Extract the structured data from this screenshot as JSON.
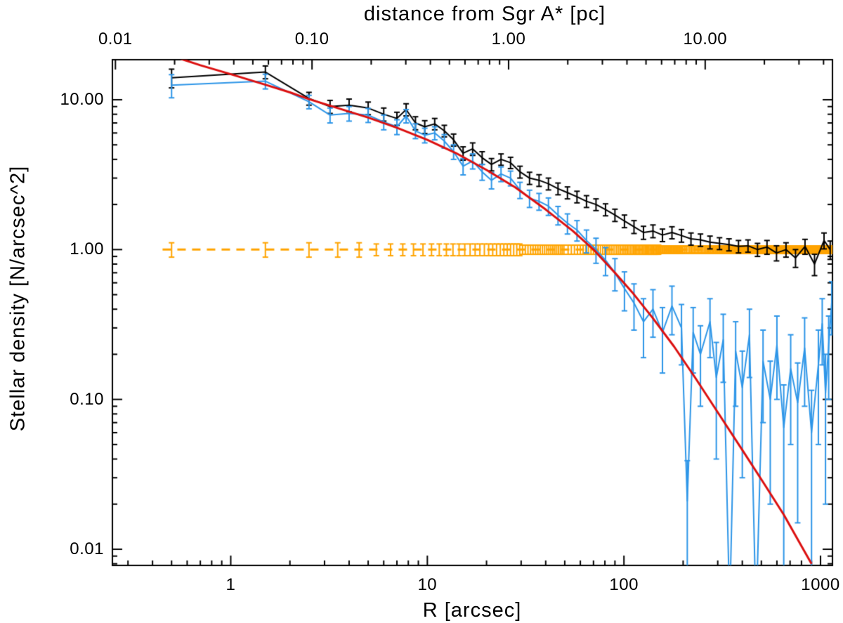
{
  "figure": {
    "title_top": "distance from Sgr A* [pc]",
    "xlabel": "R [arcsec]",
    "ylabel": "Stellar density [N/arcsec^2]"
  },
  "chart_data": {
    "type": "line",
    "x_scale": "log",
    "y_scale": "log",
    "xlim": [
      0.25,
      1150
    ],
    "ylim": [
      0.0078,
      18.5
    ],
    "grid": false,
    "legend": "none",
    "x_ticks": [
      {
        "v": 1,
        "label": "1"
      },
      {
        "v": 10,
        "label": "10"
      },
      {
        "v": 100,
        "label": "100"
      },
      {
        "v": 1000,
        "label": "1000"
      }
    ],
    "y_ticks": [
      {
        "v": 10,
        "label": "10.00"
      },
      {
        "v": 1,
        "label": "1.00"
      },
      {
        "v": 0.1,
        "label": "0.10"
      },
      {
        "v": 0.01,
        "label": "0.01"
      }
    ],
    "top_axis": {
      "label": "distance from Sgr A* [pc]",
      "arcsec_per_pc": 25.9,
      "ticks": [
        {
          "pc": 0.01,
          "label": "0.01"
        },
        {
          "pc": 0.1,
          "label": "0.10"
        },
        {
          "pc": 1,
          "label": "1.00"
        },
        {
          "pc": 10,
          "label": "10.00"
        }
      ]
    },
    "series": [
      {
        "name": "black-observed-density",
        "color": "#000000",
        "type": "errorbar-line",
        "points": [
          [
            0.5,
            14.0,
            2.0
          ],
          [
            1.5,
            15.3,
            1.5
          ],
          [
            2.5,
            10.2,
            1.0
          ],
          [
            3.2,
            9.0,
            0.9
          ],
          [
            4.0,
            9.2,
            0.9
          ],
          [
            5.0,
            8.8,
            0.85
          ],
          [
            6.0,
            8.0,
            0.8
          ],
          [
            7.0,
            7.5,
            0.75
          ],
          [
            7.8,
            8.6,
            0.8
          ],
          [
            8.7,
            7.0,
            0.7
          ],
          [
            9.7,
            6.6,
            0.65
          ],
          [
            10.9,
            6.9,
            0.6
          ],
          [
            12.2,
            6.2,
            0.55
          ],
          [
            13.6,
            5.4,
            0.5
          ],
          [
            15.2,
            4.4,
            0.45
          ],
          [
            17.0,
            4.7,
            0.45
          ],
          [
            19.0,
            4.1,
            0.4
          ],
          [
            21.2,
            3.7,
            0.35
          ],
          [
            23.7,
            4.0,
            0.35
          ],
          [
            26.5,
            3.8,
            0.33
          ],
          [
            29.6,
            3.3,
            0.3
          ],
          [
            33.1,
            3.0,
            0.28
          ],
          [
            37.0,
            2.9,
            0.26
          ],
          [
            41.3,
            2.75,
            0.25
          ],
          [
            46.2,
            2.55,
            0.23
          ],
          [
            51.6,
            2.4,
            0.22
          ],
          [
            57.7,
            2.25,
            0.2
          ],
          [
            64.5,
            2.1,
            0.19
          ],
          [
            72.1,
            2.0,
            0.18
          ],
          [
            80.6,
            1.85,
            0.17
          ],
          [
            90.0,
            1.7,
            0.16
          ],
          [
            100.6,
            1.55,
            0.15
          ],
          [
            112.5,
            1.42,
            0.14
          ],
          [
            125.7,
            1.3,
            0.13
          ],
          [
            140.5,
            1.33,
            0.13
          ],
          [
            157.0,
            1.25,
            0.12
          ],
          [
            175.5,
            1.3,
            0.12
          ],
          [
            196.2,
            1.24,
            0.12
          ],
          [
            219.3,
            1.18,
            0.11
          ],
          [
            245.1,
            1.16,
            0.11
          ],
          [
            274.0,
            1.12,
            0.11
          ],
          [
            306.3,
            1.1,
            0.1
          ],
          [
            342.3,
            1.08,
            0.1
          ],
          [
            382.6,
            1.05,
            0.1
          ],
          [
            427.7,
            1.06,
            0.1
          ],
          [
            478.0,
            1.0,
            0.1
          ],
          [
            534.3,
            1.04,
            0.11
          ],
          [
            597.2,
            0.95,
            0.11
          ],
          [
            667.5,
            1.0,
            0.11
          ],
          [
            746.1,
            0.88,
            0.12
          ],
          [
            833.9,
            1.05,
            0.12
          ],
          [
            932.1,
            0.8,
            0.13
          ],
          [
            1041.9,
            1.15,
            0.14
          ],
          [
            1120,
            1.0,
            0.14
          ]
        ]
      },
      {
        "name": "blue-background-subtracted-density",
        "color": "#2E96E8",
        "type": "errorbar-line",
        "points": [
          [
            0.5,
            12.5,
            2.2
          ],
          [
            1.5,
            13.3,
            1.5
          ],
          [
            2.5,
            9.7,
            1.0
          ],
          [
            3.2,
            7.9,
            0.9
          ],
          [
            4.0,
            8.1,
            0.9
          ],
          [
            5.0,
            7.9,
            0.85
          ],
          [
            6.0,
            7.1,
            0.8
          ],
          [
            7.0,
            6.6,
            0.75
          ],
          [
            7.8,
            7.8,
            0.8
          ],
          [
            8.7,
            6.2,
            0.7
          ],
          [
            9.7,
            5.8,
            0.65
          ],
          [
            10.9,
            6.0,
            0.6
          ],
          [
            12.2,
            5.3,
            0.55
          ],
          [
            13.6,
            4.5,
            0.5
          ],
          [
            15.2,
            3.6,
            0.45
          ],
          [
            17.0,
            3.9,
            0.45
          ],
          [
            19.0,
            3.3,
            0.4
          ],
          [
            21.2,
            2.9,
            0.36
          ],
          [
            23.7,
            3.2,
            0.36
          ],
          [
            26.5,
            3.0,
            0.34
          ],
          [
            29.6,
            2.5,
            0.31
          ],
          [
            33.1,
            2.2,
            0.29
          ],
          [
            37.0,
            2.1,
            0.27
          ],
          [
            41.3,
            1.95,
            0.26
          ],
          [
            46.2,
            1.7,
            0.24
          ],
          [
            51.6,
            1.5,
            0.23
          ],
          [
            57.7,
            1.35,
            0.21
          ],
          [
            64.5,
            1.15,
            0.2
          ],
          [
            72.1,
            1.0,
            0.19
          ],
          [
            80.6,
            0.85,
            0.18
          ],
          [
            90.0,
            0.7,
            0.17
          ],
          [
            100.6,
            0.55,
            0.16
          ],
          [
            112.5,
            0.44,
            0.15
          ],
          [
            125.7,
            0.33,
            0.14
          ],
          [
            140.5,
            0.4,
            0.14
          ],
          [
            157.0,
            0.28,
            0.13
          ],
          [
            175.5,
            0.42,
            0.15
          ],
          [
            196.2,
            0.3,
            0.13
          ],
          [
            210,
            0.021,
            0.018
          ],
          [
            225,
            0.28,
            0.13
          ],
          [
            245,
            0.2,
            0.11
          ],
          [
            274,
            0.33,
            0.14
          ],
          [
            295,
            0.14,
            0.1
          ],
          [
            320,
            0.25,
            0.12
          ],
          [
            345,
            0.004,
            0.003
          ],
          [
            370,
            0.21,
            0.12
          ],
          [
            400,
            0.12,
            0.09
          ],
          [
            435,
            0.27,
            0.13
          ],
          [
            470,
            0.0035,
            0.003
          ],
          [
            510,
            0.18,
            0.11
          ],
          [
            555,
            0.1,
            0.08
          ],
          [
            600,
            0.23,
            0.13
          ],
          [
            650,
            0.065,
            0.06
          ],
          [
            705,
            0.16,
            0.11
          ],
          [
            765,
            0.095,
            0.08
          ],
          [
            830,
            0.22,
            0.13
          ],
          [
            900,
            0.06,
            0.055
          ],
          [
            975,
            0.17,
            0.12
          ],
          [
            1020,
            0.32,
            0.15
          ],
          [
            1060,
            0.11,
            0.09
          ],
          [
            1100,
            0.23,
            0.13
          ],
          [
            1140,
            0.44,
            0.17
          ]
        ]
      },
      {
        "name": "red-model-fit-curve",
        "color": "#DC1010",
        "type": "line",
        "points": [
          [
            0.45,
            20.5
          ],
          [
            0.7,
            17.0
          ],
          [
            1.0,
            14.8
          ],
          [
            1.5,
            12.6
          ],
          [
            2.0,
            11.2
          ],
          [
            2.5,
            10.1
          ],
          [
            3.5,
            8.8
          ],
          [
            5.0,
            7.6
          ],
          [
            7.0,
            6.5
          ],
          [
            10.0,
            5.4
          ],
          [
            14,
            4.4
          ],
          [
            20,
            3.4
          ],
          [
            28,
            2.6
          ],
          [
            40,
            1.85
          ],
          [
            55,
            1.33
          ],
          [
            70,
            1.0
          ],
          [
            90,
            0.7
          ],
          [
            110,
            0.52
          ],
          [
            140,
            0.35
          ],
          [
            180,
            0.225
          ],
          [
            230,
            0.14
          ],
          [
            300,
            0.082
          ],
          [
            400,
            0.046
          ],
          [
            520,
            0.027
          ],
          [
            650,
            0.017
          ],
          [
            800,
            0.0105
          ],
          [
            900,
            0.008
          ]
        ]
      },
      {
        "name": "orange-background-level",
        "color": "#FFA400",
        "type": "background-constant",
        "value": 1.0,
        "range": [
          0.45,
          1150
        ],
        "tick_segments": [
          [
            0.5,
            50,
            1
          ],
          [
            52,
            200,
            2
          ],
          [
            204,
            1148,
            4
          ]
        ],
        "error_tiers": [
          [
            5,
            0.11
          ],
          [
            30,
            0.09
          ],
          [
            150,
            0.07
          ],
          [
            10000,
            0.055
          ]
        ]
      }
    ]
  }
}
